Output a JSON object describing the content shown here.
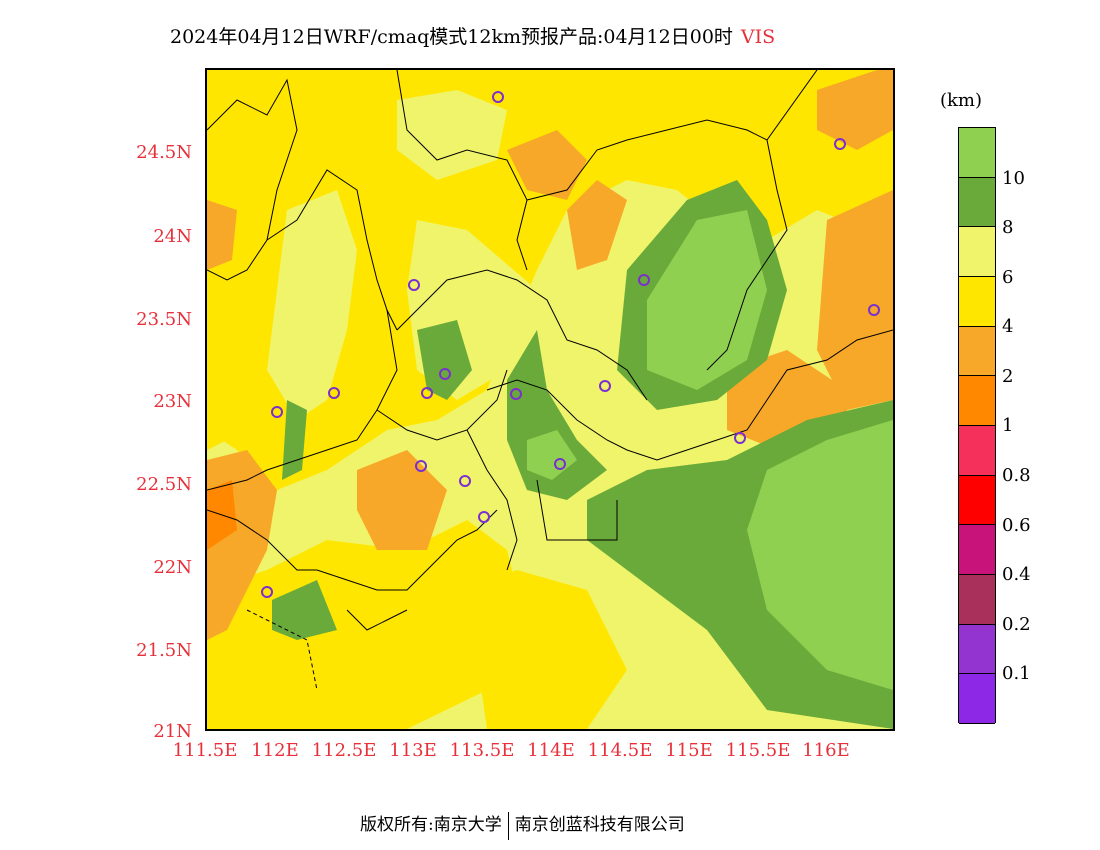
{
  "title": {
    "main": "2024年04月12日WRF/cmaq模式12km预报产品:04月12日00时",
    "variable": "VIS"
  },
  "legend": {
    "unit": "(km)",
    "levels": [
      "10",
      "8",
      "6",
      "4",
      "2",
      "1",
      "0.8",
      "0.6",
      "0.4",
      "0.2",
      "0.1"
    ],
    "colors": [
      "#90d050",
      "#6aaa3a",
      "#f0f46a",
      "#ffe600",
      "#f7a828",
      "#ff8800",
      "#f5305a",
      "#ff0000",
      "#c8147a",
      "#a8305a",
      "#9434d0",
      "#8c28e6"
    ]
  },
  "axes": {
    "y_ticks": [
      "24.5N",
      "24N",
      "23.5N",
      "23N",
      "22.5N",
      "22N",
      "21.5N",
      "21N"
    ],
    "x_ticks": [
      "111.5E",
      "112E",
      "112.5E",
      "113E",
      "113.5E",
      "114E",
      "114.5E",
      "115E",
      "115.5E",
      "116E"
    ]
  },
  "footer": {
    "left": "版权所有:南京大学",
    "right": "南京创蓝科技有限公司"
  }
}
